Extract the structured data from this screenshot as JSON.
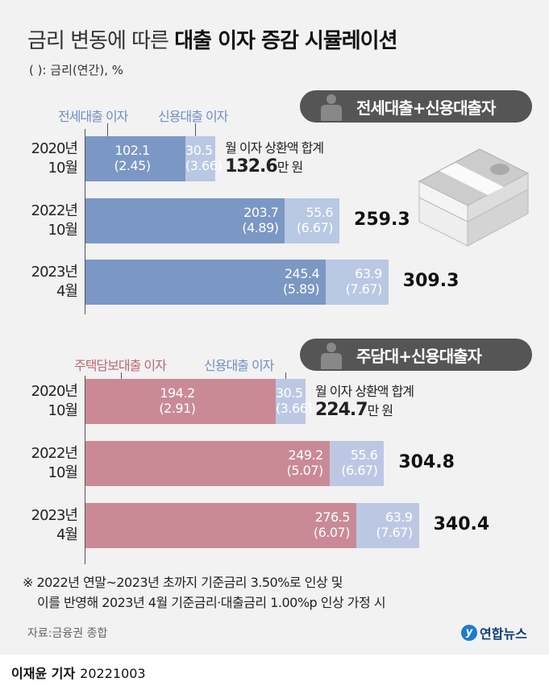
{
  "title_light": "금리 변동에 따른 ",
  "title_bold": "대출 이자 증감 시뮬레이션",
  "unit_note": "( ): 금리(연간), %",
  "total_caption": "월 이자 상환액 합계",
  "total_unit": "만 원",
  "note_lines": [
    "※ 2022년 연말~2023년 초까지 기준금리 3.50%로 인상 및",
    "이를 반영해 2023년 4월 기준금리·대출금리 1.00%p 인상 가정 시"
  ],
  "source": "자료:금융권 종합",
  "logo": "연합뉴스",
  "reporter": "이재윤 기자",
  "date": "20221003",
  "chart_data": [
    {
      "type": "bar",
      "stacked": true,
      "orientation": "horizontal",
      "title": "전세대출+신용대출자",
      "categories": [
        "2020년 10월",
        "2022년 10월",
        "2023년 4월"
      ],
      "series": [
        {
          "name": "전세대출 이자",
          "values": [
            102.1,
            203.7,
            245.4
          ],
          "rates": [
            "(2.45)",
            "(4.89)",
            "(5.89)"
          ],
          "color": "#7b97c4"
        },
        {
          "name": "신용대출 이자",
          "values": [
            30.5,
            55.6,
            63.9
          ],
          "rates": [
            "(3.66)",
            "(6.67)",
            "(7.67)"
          ],
          "color": "#b9c8e3"
        }
      ],
      "totals": [
        "132.6",
        "259.3",
        "309.3"
      ],
      "legend_color": "#6f8fc4"
    },
    {
      "type": "bar",
      "stacked": true,
      "orientation": "horizontal",
      "title": "주담대+신용대출자",
      "categories": [
        "2020년 10월",
        "2022년 10월",
        "2023년 4월"
      ],
      "series": [
        {
          "name": "주택담보대출 이자",
          "values": [
            194.2,
            249.2,
            276.5
          ],
          "rates": [
            "(2.91)",
            "(5.07)",
            "(6.07)"
          ],
          "color": "#c98a96"
        },
        {
          "name": "신용대출 이자",
          "values": [
            30.5,
            55.6,
            63.9
          ],
          "rates": [
            "(3.66)",
            "(6.67)",
            "(7.67)"
          ],
          "color": "#bcc8e3"
        }
      ],
      "totals": [
        "224.7",
        "304.8",
        "340.4"
      ],
      "legend_color": "#b96878"
    }
  ]
}
